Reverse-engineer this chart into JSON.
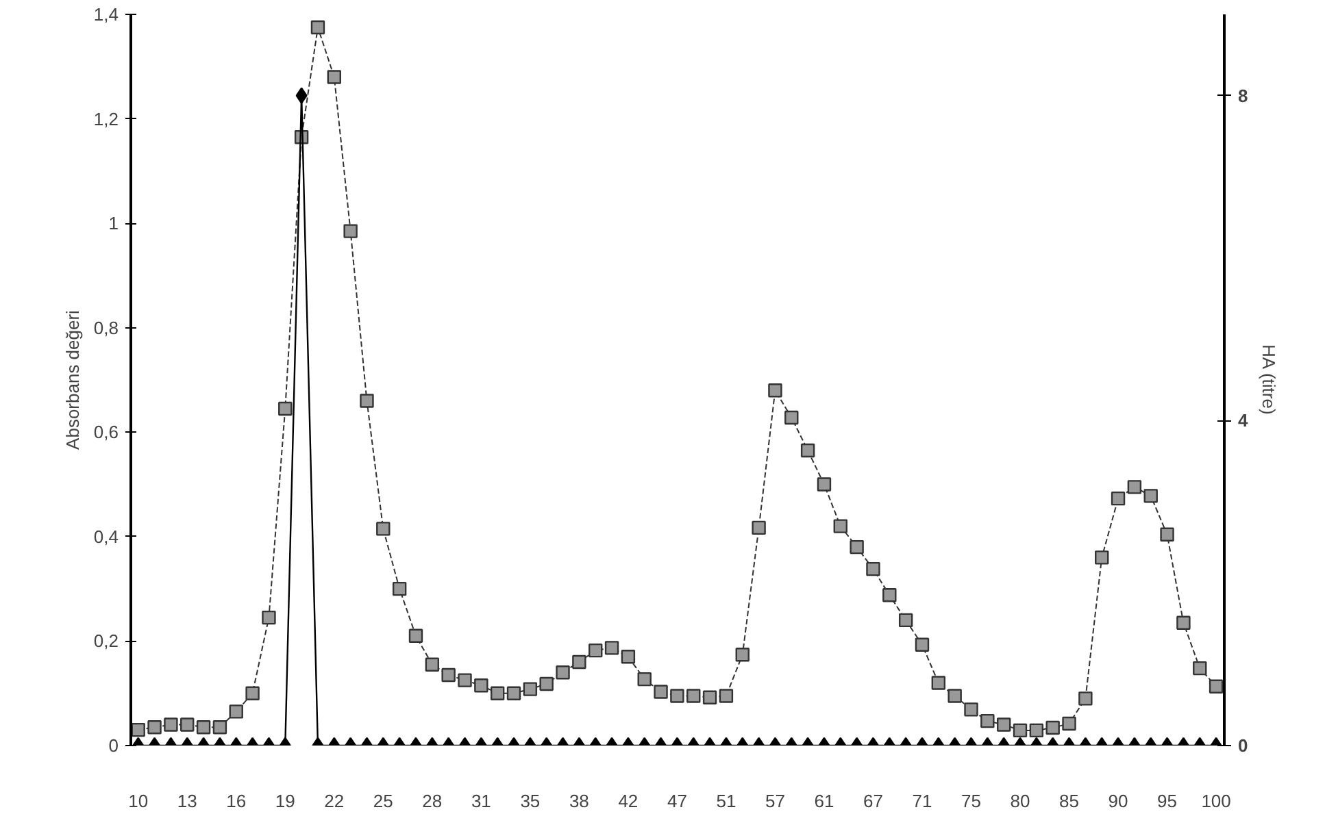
{
  "chart_data": {
    "type": "line",
    "ylabel": "Absorbans değeri",
    "y2label": "HA (titre)",
    "categories": [
      "10",
      null,
      null,
      "13",
      null,
      null,
      "16",
      null,
      null,
      "19",
      null,
      null,
      "22",
      null,
      null,
      "25",
      null,
      null,
      "28",
      null,
      null,
      "31",
      null,
      null,
      "35",
      null,
      null,
      "38",
      null,
      null,
      "42",
      null,
      null,
      "47",
      null,
      null,
      "51",
      null,
      null,
      "57",
      null,
      null,
      "61",
      null,
      null,
      "67",
      null,
      null,
      "71",
      null,
      null,
      "75",
      null,
      null,
      "80",
      null,
      null,
      "85",
      null,
      null,
      "90",
      null,
      null,
      "95",
      null,
      null,
      "100"
    ],
    "series": [
      {
        "color": "#333333",
        "marker": "square",
        "line_style": "dashed",
        "values": [
          0.03,
          0.035,
          0.04,
          0.04,
          0.035,
          0.035,
          0.065,
          0.1,
          0.245,
          0.645,
          1.165,
          1.375,
          1.28,
          0.985,
          0.66,
          0.415,
          0.3,
          0.21,
          0.155,
          0.135,
          0.125,
          0.115,
          0.1,
          0.1,
          0.108,
          0.118,
          0.14,
          0.16,
          0.182,
          0.187,
          0.17,
          0.127,
          0.103,
          0.095,
          0.095,
          0.092,
          0.095,
          0.174,
          0.417,
          0.68,
          0.628,
          0.565,
          0.5,
          0.42,
          0.38,
          0.338,
          0.288,
          0.24,
          0.193,
          0.12,
          0.095,
          0.069,
          0.047,
          0.04,
          0.029,
          0.029,
          0.034,
          0.042,
          0.09,
          0.36,
          0.473,
          0.495,
          0.478,
          0.404,
          0.235,
          0.148,
          0.113
        ]
      },
      {
        "color": "#000000",
        "marker": "diamond",
        "line_style": "solid",
        "axis": "y2",
        "values": [
          0,
          0,
          0,
          0,
          0,
          0,
          0,
          0,
          0,
          0,
          8,
          0,
          0,
          0,
          0,
          0,
          0,
          0,
          0,
          0,
          0,
          0,
          0,
          0,
          0,
          0,
          0,
          0,
          0,
          0,
          0,
          0,
          0,
          0,
          0,
          0,
          0,
          0,
          0,
          0,
          0,
          0,
          0,
          0,
          0,
          0,
          0,
          0,
          0,
          0,
          0,
          0,
          0,
          0,
          0,
          0,
          0,
          0,
          0,
          0,
          0,
          0,
          0,
          0,
          0,
          0,
          0
        ]
      }
    ],
    "ylim": [
      0,
      1.4
    ],
    "yticks": [
      0,
      {
        "value": 0.2,
        "label": "0,2"
      },
      {
        "value": 0.4,
        "label": "0,4"
      },
      {
        "value": 0.6,
        "label": "0,6"
      },
      {
        "value": 0.8,
        "label": "0,8"
      },
      1,
      {
        "value": 1.2,
        "label": "1,2"
      },
      {
        "value": 1.4,
        "label": "1,4"
      }
    ],
    "y2lim": [
      0,
      9
    ],
    "y2ticks": [
      0,
      4,
      8
    ],
    "grid": false
  }
}
